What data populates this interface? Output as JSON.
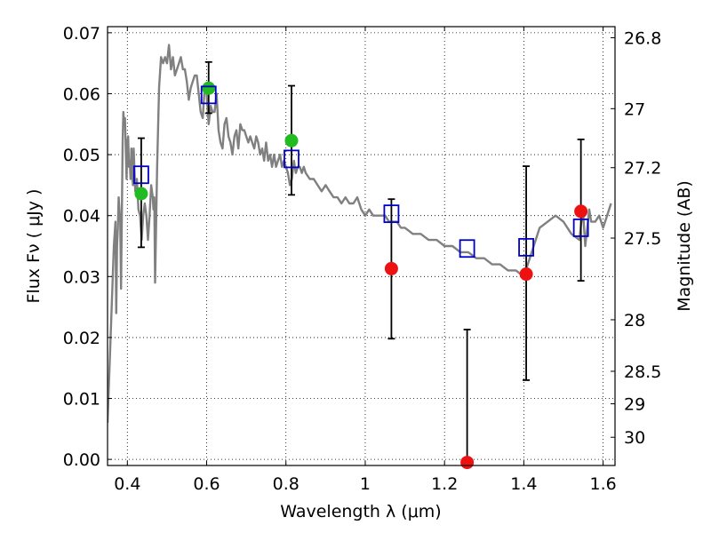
{
  "chart_data": {
    "type": "scatter",
    "xlabel": "Wavelength  λ (μm)",
    "ylabel": "Flux  Fν  ( μJy )",
    "y2label": "Magnitude (AB)",
    "xlim": [
      0.35,
      1.63
    ],
    "ylim": [
      -0.001,
      0.071
    ],
    "x_ticks": [
      0.4,
      0.6,
      0.8,
      1.0,
      1.2,
      1.4,
      1.6
    ],
    "x_tick_labels": [
      "0.4",
      "0.6",
      "0.8",
      "1",
      "1.2",
      "1.4",
      "1.6"
    ],
    "y_ticks": [
      0.0,
      0.01,
      0.02,
      0.03,
      0.04,
      0.05,
      0.06,
      0.07
    ],
    "y_tick_labels": [
      "0.00",
      "0.01",
      "0.02",
      "0.03",
      "0.04",
      "0.05",
      "0.06",
      "0.07"
    ],
    "y2_ticks": [
      26.8,
      27,
      27.2,
      27.5,
      28,
      28.5,
      29,
      30
    ],
    "y2_tick_labels": [
      "26.8",
      "27",
      "27.2",
      "27.5",
      "28",
      "28.5",
      "29",
      "30"
    ],
    "grid": true,
    "colors": {
      "model": "#808080",
      "green": "#22bb22",
      "red": "#ee1111",
      "square": "#0000cc",
      "errorbar": "#000000"
    },
    "model_series": {
      "x": [
        0.35,
        0.356,
        0.362,
        0.366,
        0.37,
        0.372,
        0.374,
        0.376,
        0.378,
        0.38,
        0.382,
        0.384,
        0.386,
        0.388,
        0.39,
        0.392,
        0.394,
        0.396,
        0.398,
        0.4,
        0.402,
        0.404,
        0.406,
        0.408,
        0.41,
        0.412,
        0.414,
        0.416,
        0.42,
        0.424,
        0.428,
        0.432,
        0.434,
        0.436,
        0.44,
        0.442,
        0.444,
        0.448,
        0.452,
        0.456,
        0.46,
        0.464,
        0.466,
        0.468,
        0.47,
        0.475,
        0.48,
        0.485,
        0.49,
        0.495,
        0.5,
        0.505,
        0.51,
        0.515,
        0.52,
        0.525,
        0.53,
        0.535,
        0.54,
        0.545,
        0.55,
        0.555,
        0.56,
        0.565,
        0.57,
        0.575,
        0.58,
        0.585,
        0.59,
        0.595,
        0.6,
        0.605,
        0.61,
        0.615,
        0.62,
        0.625,
        0.63,
        0.635,
        0.64,
        0.645,
        0.65,
        0.655,
        0.66,
        0.665,
        0.67,
        0.675,
        0.68,
        0.685,
        0.69,
        0.695,
        0.7,
        0.705,
        0.71,
        0.715,
        0.72,
        0.725,
        0.73,
        0.735,
        0.74,
        0.745,
        0.75,
        0.755,
        0.76,
        0.765,
        0.77,
        0.775,
        0.78,
        0.785,
        0.79,
        0.795,
        0.8,
        0.805,
        0.81,
        0.815,
        0.82,
        0.825,
        0.83,
        0.835,
        0.84,
        0.845,
        0.85,
        0.86,
        0.87,
        0.88,
        0.89,
        0.9,
        0.91,
        0.92,
        0.93,
        0.94,
        0.95,
        0.96,
        0.97,
        0.98,
        0.99,
        1.0,
        1.01,
        1.02,
        1.03,
        1.04,
        1.05,
        1.06,
        1.07,
        1.08,
        1.09,
        1.1,
        1.12,
        1.14,
        1.16,
        1.18,
        1.2,
        1.22,
        1.24,
        1.26,
        1.28,
        1.3,
        1.32,
        1.34,
        1.36,
        1.38,
        1.4,
        1.42,
        1.44,
        1.46,
        1.48,
        1.5,
        1.52,
        1.54,
        1.545,
        1.55,
        1.555,
        1.56,
        1.565,
        1.57,
        1.58,
        1.59,
        1.6,
        1.61,
        1.62
      ],
      "y": [
        0.006,
        0.017,
        0.028,
        0.035,
        0.039,
        0.024,
        0.035,
        0.038,
        0.043,
        0.041,
        0.039,
        0.028,
        0.04,
        0.052,
        0.057,
        0.055,
        0.056,
        0.051,
        0.046,
        0.052,
        0.053,
        0.048,
        0.049,
        0.046,
        0.051,
        0.047,
        0.045,
        0.051,
        0.044,
        0.046,
        0.041,
        0.04,
        0.038,
        0.036,
        0.04,
        0.041,
        0.042,
        0.04,
        0.036,
        0.04,
        0.045,
        0.043,
        0.041,
        0.043,
        0.029,
        0.048,
        0.061,
        0.066,
        0.065,
        0.066,
        0.065,
        0.068,
        0.064,
        0.066,
        0.063,
        0.064,
        0.065,
        0.066,
        0.064,
        0.064,
        0.062,
        0.059,
        0.061,
        0.062,
        0.063,
        0.063,
        0.06,
        0.057,
        0.056,
        0.061,
        0.06,
        0.055,
        0.058,
        0.057,
        0.057,
        0.06,
        0.054,
        0.052,
        0.051,
        0.055,
        0.056,
        0.053,
        0.052,
        0.05,
        0.053,
        0.054,
        0.051,
        0.055,
        0.054,
        0.054,
        0.053,
        0.052,
        0.053,
        0.052,
        0.051,
        0.053,
        0.052,
        0.05,
        0.051,
        0.049,
        0.052,
        0.049,
        0.05,
        0.048,
        0.05,
        0.048,
        0.049,
        0.05,
        0.048,
        0.049,
        0.048,
        0.047,
        0.045,
        0.046,
        0.049,
        0.047,
        0.048,
        0.048,
        0.047,
        0.048,
        0.047,
        0.046,
        0.046,
        0.045,
        0.044,
        0.045,
        0.044,
        0.043,
        0.043,
        0.042,
        0.043,
        0.042,
        0.042,
        0.043,
        0.041,
        0.04,
        0.041,
        0.04,
        0.04,
        0.04,
        0.04,
        0.039,
        0.039,
        0.039,
        0.038,
        0.038,
        0.037,
        0.037,
        0.036,
        0.036,
        0.035,
        0.035,
        0.034,
        0.034,
        0.033,
        0.033,
        0.032,
        0.032,
        0.031,
        0.031,
        0.03,
        0.034,
        0.038,
        0.039,
        0.04,
        0.039,
        0.037,
        0.036,
        0.039,
        0.04,
        0.035,
        0.038,
        0.041,
        0.039,
        0.039,
        0.04,
        0.038,
        0.04,
        0.042
      ],
      "note_points_only": false
    },
    "series": [
      {
        "marker": "square",
        "points": [
          {
            "x": 0.435,
            "y": 0.0467,
            "yerr_low": 0.0348,
            "yerr_high": 0.0527
          },
          {
            "x": 0.605,
            "y": 0.0598,
            "yerr_low": 0.0568,
            "yerr_high": 0.0652
          },
          {
            "x": 0.814,
            "y": 0.0493,
            "yerr_low": 0.0434,
            "yerr_high": 0.0613
          },
          {
            "x": 1.066,
            "y": 0.0403,
            "yerr_low": 0.0198,
            "yerr_high": 0.0427
          },
          {
            "x": 1.257,
            "y": 0.0346,
            "yerr_low": 0.0,
            "yerr_high": 0.0213
          },
          {
            "x": 1.406,
            "y": 0.0348,
            "yerr_low": 0.013,
            "yerr_high": 0.0481
          },
          {
            "x": 1.544,
            "y": 0.038,
            "yerr_low": 0.0293,
            "yerr_high": 0.0525
          }
        ]
      },
      {
        "marker": "green-circle",
        "points": [
          {
            "x": 0.435,
            "y": 0.0436
          },
          {
            "x": 0.605,
            "y": 0.0609
          },
          {
            "x": 0.814,
            "y": 0.0523
          }
        ]
      },
      {
        "marker": "red-circle",
        "points": [
          {
            "x": 1.066,
            "y": 0.0313
          },
          {
            "x": 1.257,
            "y": -0.0005
          },
          {
            "x": 1.406,
            "y": 0.0304
          },
          {
            "x": 1.544,
            "y": 0.0407
          }
        ]
      }
    ]
  }
}
